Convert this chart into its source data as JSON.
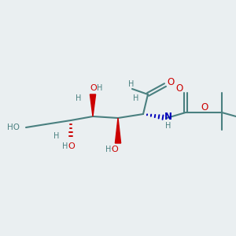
{
  "bg_color": "#eaeff1",
  "bond_color": "#4a8080",
  "red_color": "#cc0000",
  "blue_color": "#0000bb",
  "text_color": "#4a8080",
  "figsize": [
    3.0,
    3.0
  ],
  "dpi": 100,
  "xlim": [
    0,
    10
  ],
  "ylim": [
    0,
    10
  ]
}
